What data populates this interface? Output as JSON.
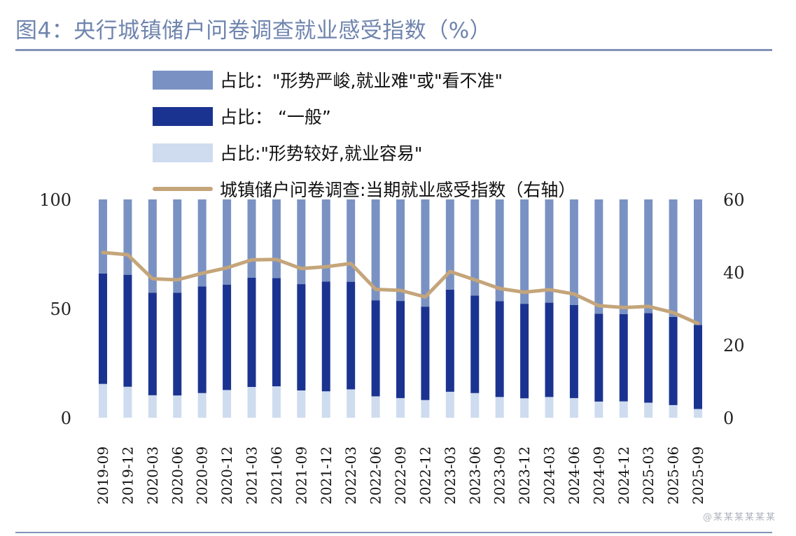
{
  "title": "图4：央行城镇储户问卷调查就业感受指数（%）",
  "legend": [
    {
      "label": "占比：\"形势严峻,就业难\"或\"看不准\"",
      "color": "#7a92c3",
      "kind": "bar"
    },
    {
      "label": "占比：  “一般”",
      "color": "#1b3390",
      "kind": "bar"
    },
    {
      "label": "占比:\"形势较好,就业容易\"",
      "color": "#cfdcef",
      "kind": "bar"
    },
    {
      "label": "城镇储户问卷调查:当期就业感受指数（右轴）",
      "color": "#c4a57a",
      "kind": "line"
    }
  ],
  "chart_data": {
    "type": "bar",
    "stacked": true,
    "categories": [
      "2019-09",
      "2019-12",
      "2020-03",
      "2020-06",
      "2020-09",
      "2020-12",
      "2021-03",
      "2021-06",
      "2021-09",
      "2021-12",
      "2022-03",
      "2022-06",
      "2022-09",
      "2022-12",
      "2023-03",
      "2023-06",
      "2023-09",
      "2023-12",
      "2024-03",
      "2024-06",
      "2024-09",
      "2024-12",
      "2025-03",
      "2025-06",
      "2025-09"
    ],
    "series": [
      {
        "name": "占比:\"形势较好,就业容易\"",
        "color": "#cfdcef",
        "values": [
          15.5,
          14.2,
          10.3,
          10.2,
          11.3,
          12.7,
          14.1,
          14.4,
          12.5,
          12.1,
          13.0,
          9.8,
          9.0,
          8.1,
          11.9,
          11.3,
          9.5,
          8.9,
          9.5,
          9.0,
          7.4,
          7.5,
          6.9,
          5.8,
          4.0
        ]
      },
      {
        "name": "占比：  “一般”",
        "color": "#1b3390",
        "values": [
          50.6,
          51.3,
          47.0,
          47.1,
          48.8,
          48.3,
          50.0,
          49.6,
          48.7,
          50.3,
          49.3,
          44.0,
          44.5,
          42.8,
          46.8,
          44.7,
          43.9,
          43.3,
          43.2,
          42.6,
          40.2,
          40.0,
          41.0,
          40.4,
          38.5
        ]
      },
      {
        "name": "占比：\"形势严峻,就业难\"或\"看不准\"",
        "color": "#7a92c3",
        "values": [
          33.9,
          34.5,
          42.7,
          42.7,
          39.9,
          39.0,
          35.9,
          36.0,
          38.8,
          37.6,
          37.7,
          46.2,
          46.5,
          49.1,
          41.3,
          44.0,
          46.6,
          47.8,
          47.3,
          48.4,
          52.4,
          52.5,
          52.1,
          53.8,
          57.5
        ]
      },
      {
        "name": "城镇储户问卷调查:当期就业感受指数（右轴）",
        "color": "#c4a57a",
        "kind": "line",
        "axis": "right",
        "values": [
          45.4,
          44.8,
          38.2,
          37.9,
          39.7,
          41.2,
          43.4,
          43.5,
          41.0,
          41.5,
          42.4,
          35.3,
          35.0,
          33.2,
          40.2,
          37.9,
          35.5,
          34.5,
          35.2,
          34.0,
          30.8,
          30.3,
          30.6,
          28.9,
          25.9
        ]
      }
    ],
    "left_axis": {
      "min": 0,
      "max": 100,
      "ticks": [
        0,
        50,
        100
      ]
    },
    "right_axis": {
      "min": 0,
      "max": 60,
      "ticks": [
        0,
        20,
        40,
        60
      ]
    },
    "legend_position": "top-left"
  },
  "watermark": "@某某某某某某"
}
